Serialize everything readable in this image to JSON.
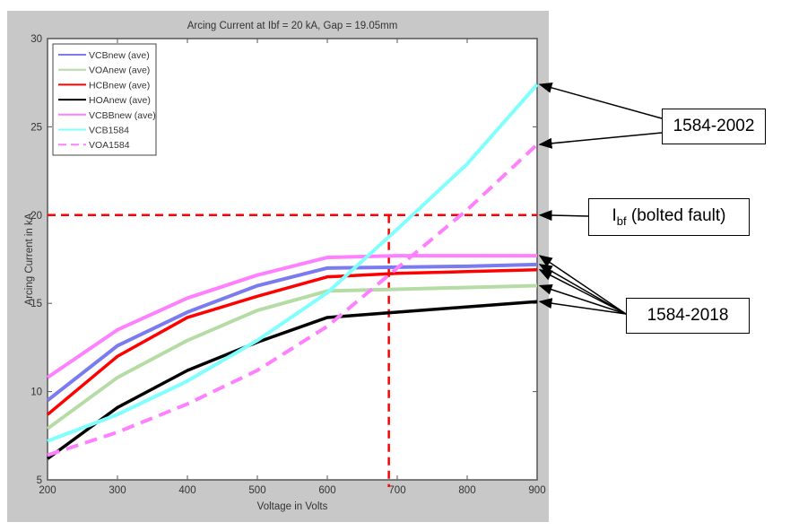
{
  "chart_data": {
    "type": "line",
    "title": "Arcing Current at Ibf = 20 kA, Gap = 19.05mm",
    "xlabel": "Voltage in Volts",
    "ylabel": "Arcing Current in kA",
    "xlim": [
      200,
      900
    ],
    "ylim": [
      5,
      30
    ],
    "xticks": [
      200,
      300,
      400,
      500,
      600,
      700,
      800,
      900
    ],
    "yticks": [
      5,
      10,
      15,
      20,
      25,
      30
    ],
    "grid": false,
    "legend_position": "top-left",
    "x": [
      200,
      300,
      400,
      500,
      600,
      700,
      800,
      900
    ],
    "series": [
      {
        "name": "VCBnew (ave)",
        "color": "#7b7bf0",
        "style": "solid",
        "values": [
          9.5,
          12.6,
          14.5,
          16.0,
          17.0,
          17.05,
          17.1,
          17.2
        ]
      },
      {
        "name": "VOAnew (ave)",
        "color": "#b6dca6",
        "style": "solid",
        "values": [
          7.9,
          10.8,
          12.9,
          14.6,
          15.7,
          15.8,
          15.9,
          16.0
        ]
      },
      {
        "name": "HCBnew (ave)",
        "color": "#ff0000",
        "style": "solid",
        "values": [
          8.7,
          12.0,
          14.2,
          15.4,
          16.5,
          16.7,
          16.8,
          16.9
        ]
      },
      {
        "name": "HOAnew (ave)",
        "color": "#000000",
        "style": "solid",
        "values": [
          6.2,
          9.1,
          11.2,
          12.8,
          14.2,
          14.5,
          14.8,
          15.1
        ]
      },
      {
        "name": "VCBBnew (ave)",
        "color": "#ff80ff",
        "style": "solid",
        "values": [
          10.8,
          13.5,
          15.3,
          16.6,
          17.6,
          17.7,
          17.7,
          17.7
        ]
      },
      {
        "name": "VCB1584",
        "color": "#80ffff",
        "style": "solid",
        "values": [
          7.2,
          8.7,
          10.6,
          12.9,
          15.6,
          19.2,
          22.9,
          27.4
        ]
      },
      {
        "name": "VOA1584",
        "color": "#ff80ff",
        "style": "dashed",
        "values": [
          6.4,
          7.7,
          9.3,
          11.2,
          13.7,
          17.0,
          20.3,
          24.0
        ]
      }
    ],
    "reference_lines": {
      "ibf_kA": 20,
      "voltage_at_ibf": 688,
      "color": "#ff0000"
    }
  },
  "annotations": {
    "label_2002": "1584-2002",
    "label_ibf_main": "I",
    "label_ibf_sub": "bf",
    "label_ibf_rest": " (bolted fault)",
    "label_2018": "1584-2018"
  }
}
